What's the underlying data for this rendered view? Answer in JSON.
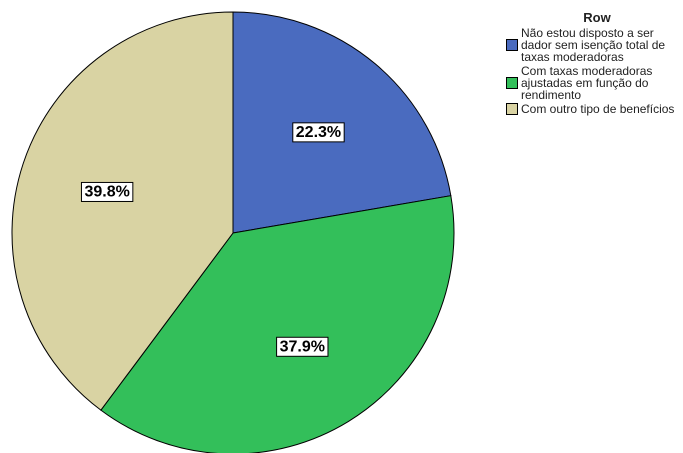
{
  "chart_data": {
    "type": "pie",
    "legend_title": "Row",
    "series": [
      {
        "name": "Não estou disposto a ser dador sem isenção total de taxas moderadoras",
        "color": "#4a6bbf"
      },
      {
        "name": "Com taxas moderadoras ajustadas em função do rendimento",
        "color": "#33bf5a"
      },
      {
        "name": "Com outro tipo de benefícios",
        "color": "#d9d3a3"
      }
    ],
    "values": [
      22.3,
      37.9,
      39.8
    ],
    "value_labels": [
      "22.3%",
      "37.9%",
      "39.8%"
    ],
    "legend": "upper right"
  }
}
